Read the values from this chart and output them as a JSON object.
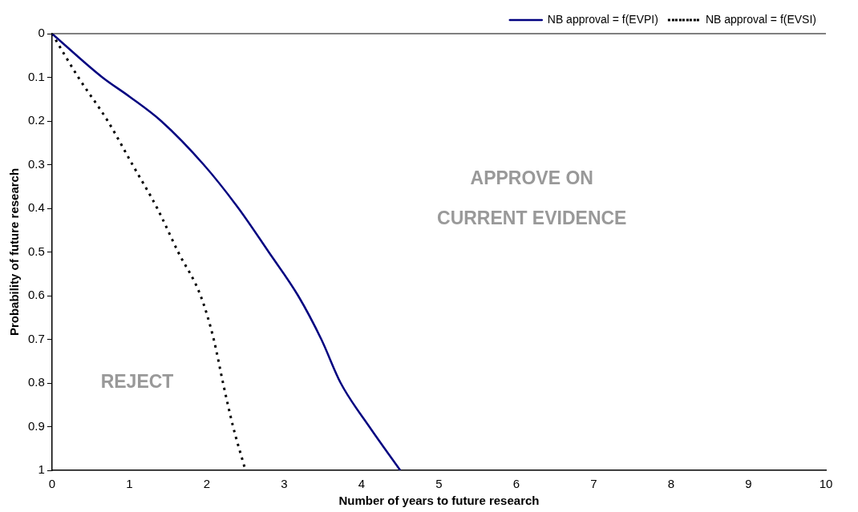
{
  "chart_data": {
    "type": "line",
    "xlabel": "Number of years to future research",
    "ylabel": "Probability of future research",
    "xlim": [
      0,
      10
    ],
    "xticks": [
      0,
      1,
      2,
      3,
      4,
      5,
      6,
      7,
      8,
      9,
      10
    ],
    "ylim": [
      1,
      0
    ],
    "yticks": [
      0,
      0.1,
      0.2,
      0.3,
      0.4,
      0.5,
      0.6,
      0.7,
      0.8,
      0.9,
      1
    ],
    "grid": false,
    "legend": "top right",
    "marker": "none",
    "annotations": [
      "APPROVE ON\nCURRENT EVIDENCE",
      "REJECT"
    ],
    "series": [
      {
        "name": "NB approval = f(EVPI)",
        "color": "#000080",
        "line_style": "solid",
        "x": [
          0,
          0.65,
          1,
          1.41,
          1.96,
          2.41,
          2.8,
          3.18,
          3.48,
          3.73,
          4.1,
          4.5
        ],
        "values": [
          0,
          0.1,
          0.144,
          0.2,
          0.3,
          0.4,
          0.5,
          0.6,
          0.7,
          0.8,
          0.9,
          1
        ]
      },
      {
        "name": "NB approval = f(EVSI)",
        "color": "#000000",
        "line_style": "dotted",
        "x": [
          0,
          0.34,
          0.72,
          1.04,
          1.36,
          1.63,
          1.92,
          2.09,
          2.21,
          2.34,
          2.5
        ],
        "values": [
          0,
          0.1,
          0.2,
          0.3,
          0.4,
          0.5,
          0.6,
          0.7,
          0.8,
          0.9,
          1
        ]
      }
    ]
  }
}
